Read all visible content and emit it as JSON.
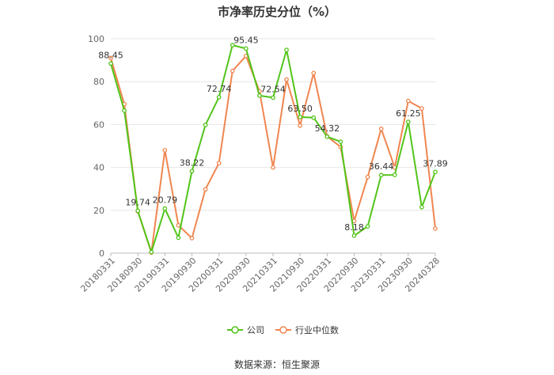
{
  "title": "市净率历史分位（%）",
  "source": "数据来源：恒生聚源",
  "chart_data": {
    "type": "line",
    "title": "市净率历史分位（%）",
    "ylim": [
      0,
      100
    ],
    "yticks": [
      0,
      20,
      40,
      60,
      80,
      100
    ],
    "grid": true,
    "legend_position": "bottom",
    "x": [
      "20180331",
      "20180630",
      "20180930",
      "20181231",
      "20190331",
      "20190630",
      "20190930",
      "20191231",
      "20200331",
      "20200630",
      "20200930",
      "20201231",
      "20210331",
      "20210630",
      "20210930",
      "20211231",
      "20220331",
      "20220630",
      "20220930",
      "20221231",
      "20230331",
      "20230630",
      "20230930",
      "20231231",
      "20240328"
    ],
    "xtick_labels": [
      "20180331",
      "20180930",
      "20190331",
      "20190930",
      "20200331",
      "20200930",
      "20210331",
      "20210930",
      "20220331",
      "20220930",
      "20230331",
      "20230930",
      "20240328"
    ],
    "series": [
      {
        "name": "公司",
        "color": "#52c41a",
        "values": [
          88.45,
          66.5,
          19.74,
          0.5,
          20.79,
          7.2,
          38.22,
          59.8,
          72.74,
          97.0,
          95.45,
          73.5,
          72.54,
          94.8,
          63.5,
          63.2,
          54.32,
          52.0,
          8.18,
          12.5,
          36.44,
          36.5,
          61.25,
          21.5,
          37.89
        ]
      },
      {
        "name": "行业中位数",
        "color": "#f08650",
        "values": [
          91.0,
          69.5,
          19.5,
          0.3,
          48.0,
          13.0,
          7.0,
          29.8,
          42.0,
          85.0,
          92.0,
          75.5,
          40.0,
          81.0,
          59.5,
          84.0,
          54.5,
          49.5,
          15.0,
          35.5,
          58.0,
          40.0,
          71.0,
          67.5,
          11.5
        ]
      }
    ],
    "data_labels": [
      {
        "series": 0,
        "index": 0,
        "text": "88.45"
      },
      {
        "series": 0,
        "index": 2,
        "text": "19.74"
      },
      {
        "series": 0,
        "index": 4,
        "text": "20.79"
      },
      {
        "series": 0,
        "index": 6,
        "text": "38.22"
      },
      {
        "series": 0,
        "index": 8,
        "text": "72.74"
      },
      {
        "series": 0,
        "index": 10,
        "text": "95.45"
      },
      {
        "series": 0,
        "index": 12,
        "text": "72.54"
      },
      {
        "series": 0,
        "index": 14,
        "text": "63.50"
      },
      {
        "series": 0,
        "index": 16,
        "text": "54.32"
      },
      {
        "series": 0,
        "index": 18,
        "text": "8.18"
      },
      {
        "series": 0,
        "index": 20,
        "text": "36.44"
      },
      {
        "series": 0,
        "index": 22,
        "text": "61.25"
      },
      {
        "series": 0,
        "index": 24,
        "text": "37.89"
      }
    ]
  }
}
